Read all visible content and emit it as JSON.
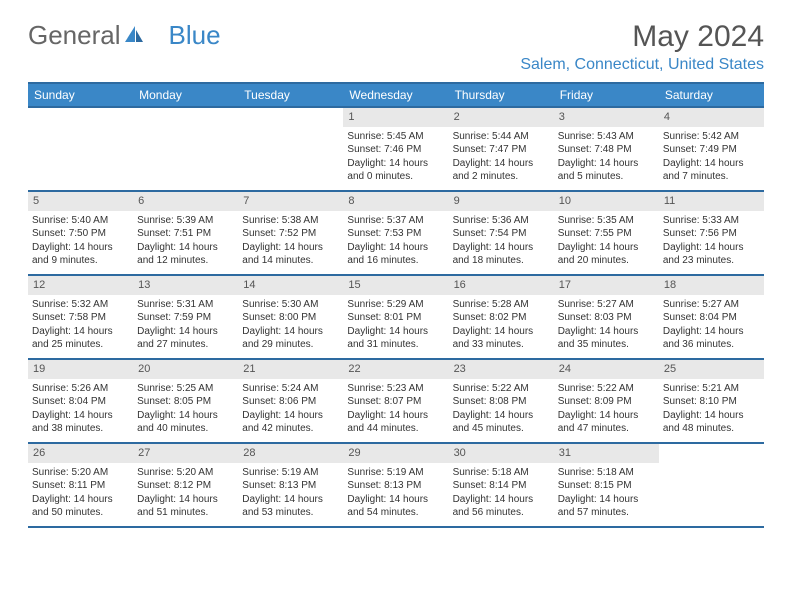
{
  "logo": {
    "part1": "General",
    "part2": "Blue"
  },
  "title": "May 2024",
  "location": "Salem, Connecticut, United States",
  "colors": {
    "header_bg": "#3a87c7",
    "header_border": "#2d6aa0",
    "daynum_bg": "#e8e8e8",
    "text": "#333333"
  },
  "weekdays": [
    "Sunday",
    "Monday",
    "Tuesday",
    "Wednesday",
    "Thursday",
    "Friday",
    "Saturday"
  ],
  "weeks": [
    [
      null,
      null,
      null,
      {
        "n": "1",
        "sr": "5:45 AM",
        "ss": "7:46 PM",
        "dl": "14 hours and 0 minutes."
      },
      {
        "n": "2",
        "sr": "5:44 AM",
        "ss": "7:47 PM",
        "dl": "14 hours and 2 minutes."
      },
      {
        "n": "3",
        "sr": "5:43 AM",
        "ss": "7:48 PM",
        "dl": "14 hours and 5 minutes."
      },
      {
        "n": "4",
        "sr": "5:42 AM",
        "ss": "7:49 PM",
        "dl": "14 hours and 7 minutes."
      }
    ],
    [
      {
        "n": "5",
        "sr": "5:40 AM",
        "ss": "7:50 PM",
        "dl": "14 hours and 9 minutes."
      },
      {
        "n": "6",
        "sr": "5:39 AM",
        "ss": "7:51 PM",
        "dl": "14 hours and 12 minutes."
      },
      {
        "n": "7",
        "sr": "5:38 AM",
        "ss": "7:52 PM",
        "dl": "14 hours and 14 minutes."
      },
      {
        "n": "8",
        "sr": "5:37 AM",
        "ss": "7:53 PM",
        "dl": "14 hours and 16 minutes."
      },
      {
        "n": "9",
        "sr": "5:36 AM",
        "ss": "7:54 PM",
        "dl": "14 hours and 18 minutes."
      },
      {
        "n": "10",
        "sr": "5:35 AM",
        "ss": "7:55 PM",
        "dl": "14 hours and 20 minutes."
      },
      {
        "n": "11",
        "sr": "5:33 AM",
        "ss": "7:56 PM",
        "dl": "14 hours and 23 minutes."
      }
    ],
    [
      {
        "n": "12",
        "sr": "5:32 AM",
        "ss": "7:58 PM",
        "dl": "14 hours and 25 minutes."
      },
      {
        "n": "13",
        "sr": "5:31 AM",
        "ss": "7:59 PM",
        "dl": "14 hours and 27 minutes."
      },
      {
        "n": "14",
        "sr": "5:30 AM",
        "ss": "8:00 PM",
        "dl": "14 hours and 29 minutes."
      },
      {
        "n": "15",
        "sr": "5:29 AM",
        "ss": "8:01 PM",
        "dl": "14 hours and 31 minutes."
      },
      {
        "n": "16",
        "sr": "5:28 AM",
        "ss": "8:02 PM",
        "dl": "14 hours and 33 minutes."
      },
      {
        "n": "17",
        "sr": "5:27 AM",
        "ss": "8:03 PM",
        "dl": "14 hours and 35 minutes."
      },
      {
        "n": "18",
        "sr": "5:27 AM",
        "ss": "8:04 PM",
        "dl": "14 hours and 36 minutes."
      }
    ],
    [
      {
        "n": "19",
        "sr": "5:26 AM",
        "ss": "8:04 PM",
        "dl": "14 hours and 38 minutes."
      },
      {
        "n": "20",
        "sr": "5:25 AM",
        "ss": "8:05 PM",
        "dl": "14 hours and 40 minutes."
      },
      {
        "n": "21",
        "sr": "5:24 AM",
        "ss": "8:06 PM",
        "dl": "14 hours and 42 minutes."
      },
      {
        "n": "22",
        "sr": "5:23 AM",
        "ss": "8:07 PM",
        "dl": "14 hours and 44 minutes."
      },
      {
        "n": "23",
        "sr": "5:22 AM",
        "ss": "8:08 PM",
        "dl": "14 hours and 45 minutes."
      },
      {
        "n": "24",
        "sr": "5:22 AM",
        "ss": "8:09 PM",
        "dl": "14 hours and 47 minutes."
      },
      {
        "n": "25",
        "sr": "5:21 AM",
        "ss": "8:10 PM",
        "dl": "14 hours and 48 minutes."
      }
    ],
    [
      {
        "n": "26",
        "sr": "5:20 AM",
        "ss": "8:11 PM",
        "dl": "14 hours and 50 minutes."
      },
      {
        "n": "27",
        "sr": "5:20 AM",
        "ss": "8:12 PM",
        "dl": "14 hours and 51 minutes."
      },
      {
        "n": "28",
        "sr": "5:19 AM",
        "ss": "8:13 PM",
        "dl": "14 hours and 53 minutes."
      },
      {
        "n": "29",
        "sr": "5:19 AM",
        "ss": "8:13 PM",
        "dl": "14 hours and 54 minutes."
      },
      {
        "n": "30",
        "sr": "5:18 AM",
        "ss": "8:14 PM",
        "dl": "14 hours and 56 minutes."
      },
      {
        "n": "31",
        "sr": "5:18 AM",
        "ss": "8:15 PM",
        "dl": "14 hours and 57 minutes."
      },
      null
    ]
  ]
}
